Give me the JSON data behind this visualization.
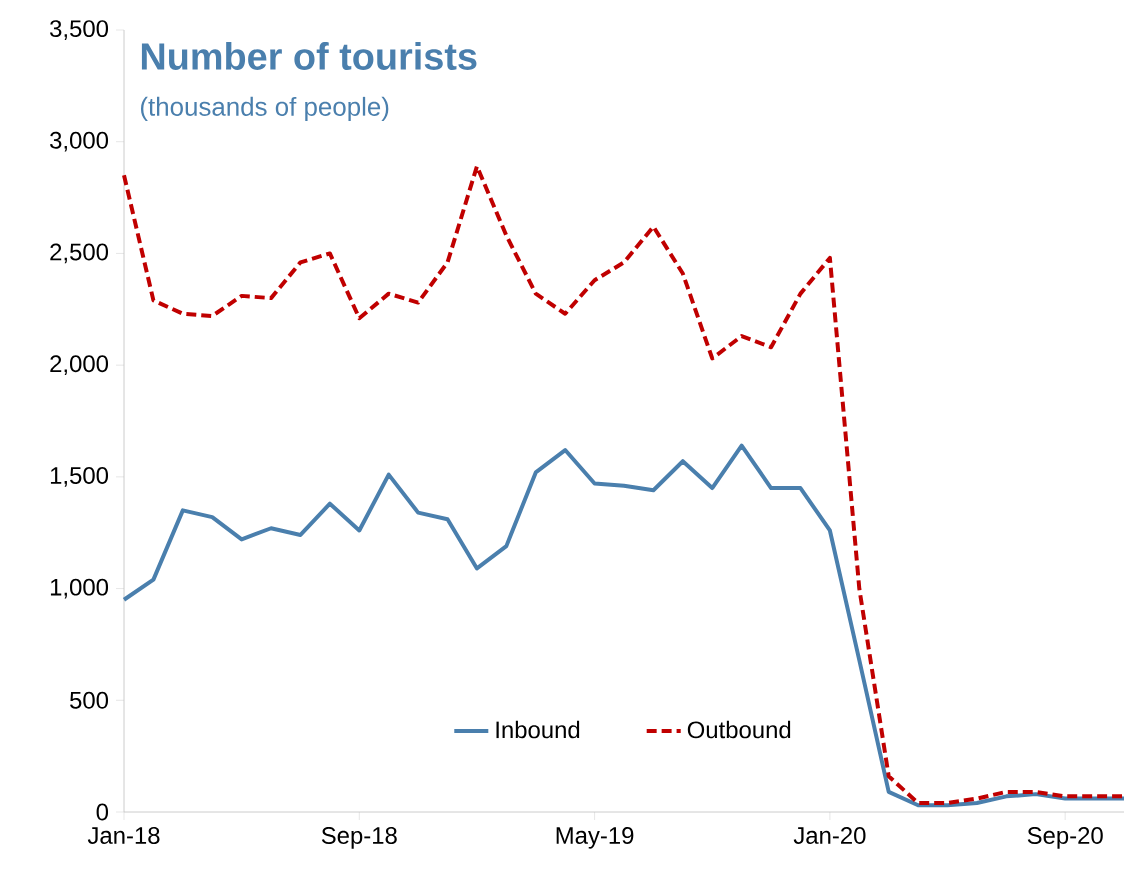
{
  "chart_data": {
    "type": "line",
    "title": "Number of tourists",
    "subtitle": "(thousands of people)",
    "x": [
      "2018-01",
      "2018-02",
      "2018-03",
      "2018-04",
      "2018-05",
      "2018-06",
      "2018-07",
      "2018-08",
      "2018-09",
      "2018-10",
      "2018-11",
      "2018-12",
      "2019-01",
      "2019-02",
      "2019-03",
      "2019-04",
      "2019-05",
      "2019-06",
      "2019-07",
      "2019-08",
      "2019-09",
      "2019-10",
      "2019-11",
      "2019-12",
      "2020-01",
      "2020-02",
      "2020-03",
      "2020-04",
      "2020-05",
      "2020-06",
      "2020-07",
      "2020-08",
      "2020-09",
      "2020-10",
      "2020-11"
    ],
    "series": [
      {
        "name": "Inbound",
        "color": "#4a7fad",
        "line_style": "solid",
        "values": [
          950,
          1040,
          1350,
          1320,
          1220,
          1270,
          1240,
          1380,
          1260,
          1510,
          1340,
          1310,
          1090,
          1190,
          1520,
          1620,
          1470,
          1460,
          1440,
          1570,
          1450,
          1640,
          1450,
          1450,
          1260,
          680,
          90,
          30,
          30,
          40,
          70,
          80,
          60,
          60,
          60
        ]
      },
      {
        "name": "Outbound",
        "color": "#c00000",
        "line_style": "dashed",
        "values": [
          2850,
          2290,
          2230,
          2220,
          2310,
          2300,
          2460,
          2500,
          2210,
          2320,
          2280,
          2460,
          2890,
          2580,
          2320,
          2230,
          2380,
          2460,
          2620,
          2410,
          2030,
          2130,
          2080,
          2320,
          2480,
          1000,
          160,
          40,
          40,
          60,
          90,
          90,
          70,
          70,
          70
        ]
      }
    ],
    "xlim": [
      "2018-01",
      "2020-11"
    ],
    "xticks": [
      {
        "value": "2018-01",
        "label": "Jan-18"
      },
      {
        "value": "2018-09",
        "label": "Sep-18"
      },
      {
        "value": "2019-05",
        "label": "May-19"
      },
      {
        "value": "2020-01",
        "label": "Jan-20"
      },
      {
        "value": "2020-09",
        "label": "Sep-20"
      }
    ],
    "ylim": [
      0,
      3500
    ],
    "yticks": [
      0,
      500,
      {
        "value": 1000,
        "label": "1,000"
      },
      {
        "value": 1500,
        "label": "1,500"
      },
      {
        "value": 2000,
        "label": "2,000"
      },
      {
        "value": 2500,
        "label": "2,500"
      },
      {
        "value": 3000,
        "label": "3,000"
      },
      {
        "value": 3500,
        "label": "3,500"
      }
    ],
    "grid": false,
    "legend": "bottom",
    "marker": "none"
  }
}
